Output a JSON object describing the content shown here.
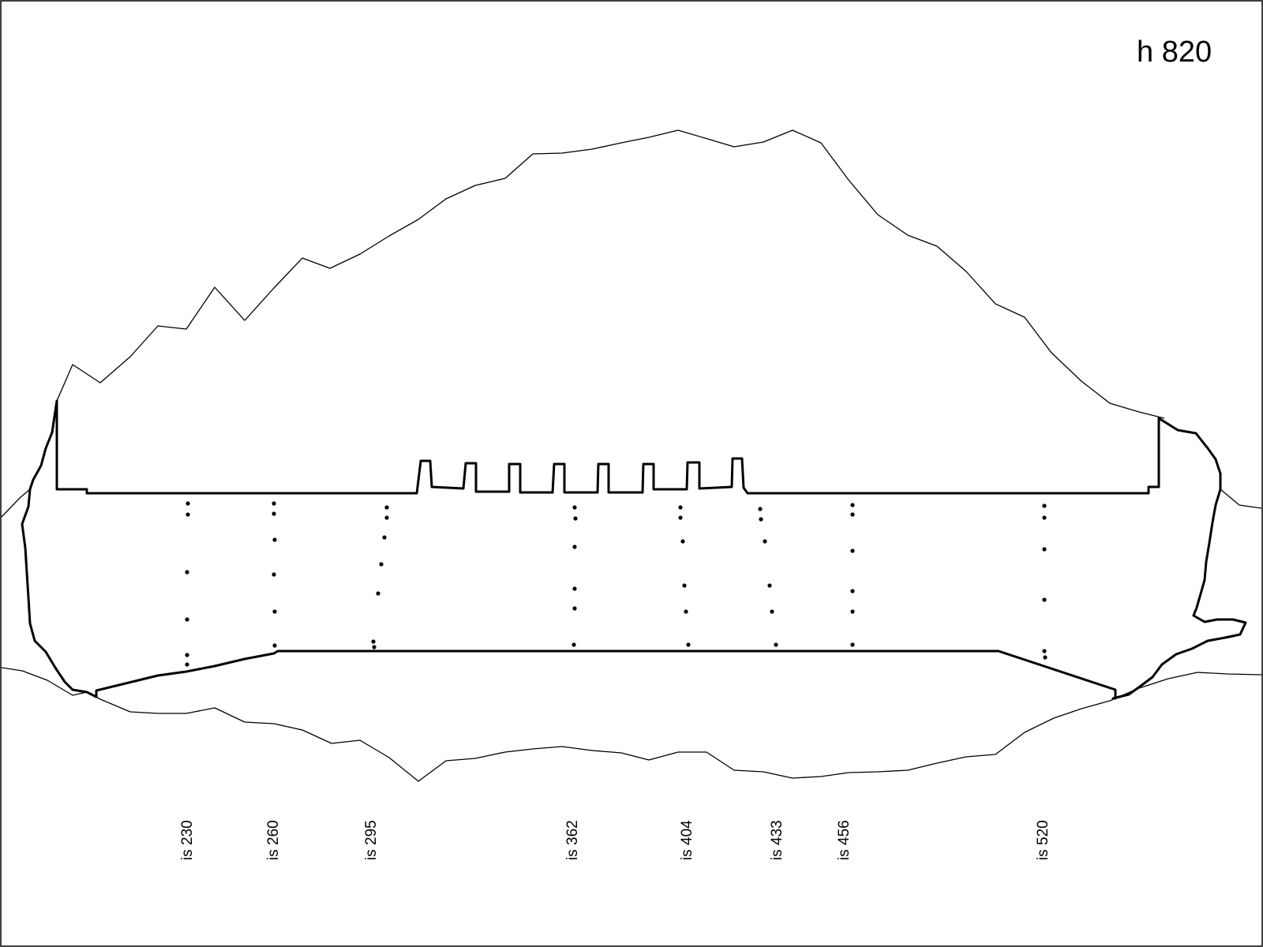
{
  "title": "h 820",
  "sections": [
    {
      "label": "is 230"
    },
    {
      "label": "is 260"
    },
    {
      "label": "is 295"
    },
    {
      "label": "is 362"
    },
    {
      "label": "is 404"
    },
    {
      "label": "is 433"
    },
    {
      "label": "is 456"
    },
    {
      "label": "is 520"
    }
  ]
}
